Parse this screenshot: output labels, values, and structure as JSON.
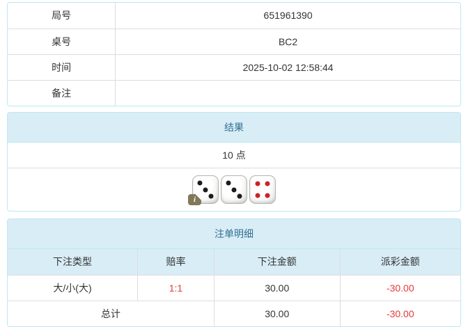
{
  "info_table": {
    "rows": [
      {
        "label": "局号",
        "value": "651961390"
      },
      {
        "label": "桌号",
        "value": "BC2"
      },
      {
        "label": "时间",
        "value": "2025-10-02 12:58:44"
      },
      {
        "label": "备注",
        "value": ""
      }
    ]
  },
  "result_panel": {
    "title": "结果",
    "points": "10 点",
    "dice": [
      {
        "value": 3,
        "color": "black"
      },
      {
        "value": 3,
        "color": "black"
      },
      {
        "value": 4,
        "color": "red"
      }
    ],
    "info_icon_label": "i"
  },
  "bets_panel": {
    "title": "注单明细",
    "columns": [
      "下注类型",
      "赔率",
      "下注金额",
      "派彩金额"
    ],
    "rows": [
      {
        "type": "大/小(大)",
        "odds": "1:1",
        "bet": "30.00",
        "payout": "-30.00"
      }
    ],
    "total": {
      "label": "总计",
      "bet": "30.00",
      "payout": "-30.00"
    }
  },
  "colors": {
    "panel_border": "#bce8f1",
    "panel_header_bg": "#d9edf7",
    "panel_header_text": "#31708f",
    "row_border": "#dddddd",
    "body_text": "#333333",
    "negative_text": "#e4393c",
    "pip_black": "#1c1c1c",
    "pip_red": "#cc2229",
    "info_badge_bg": "#81785a"
  }
}
